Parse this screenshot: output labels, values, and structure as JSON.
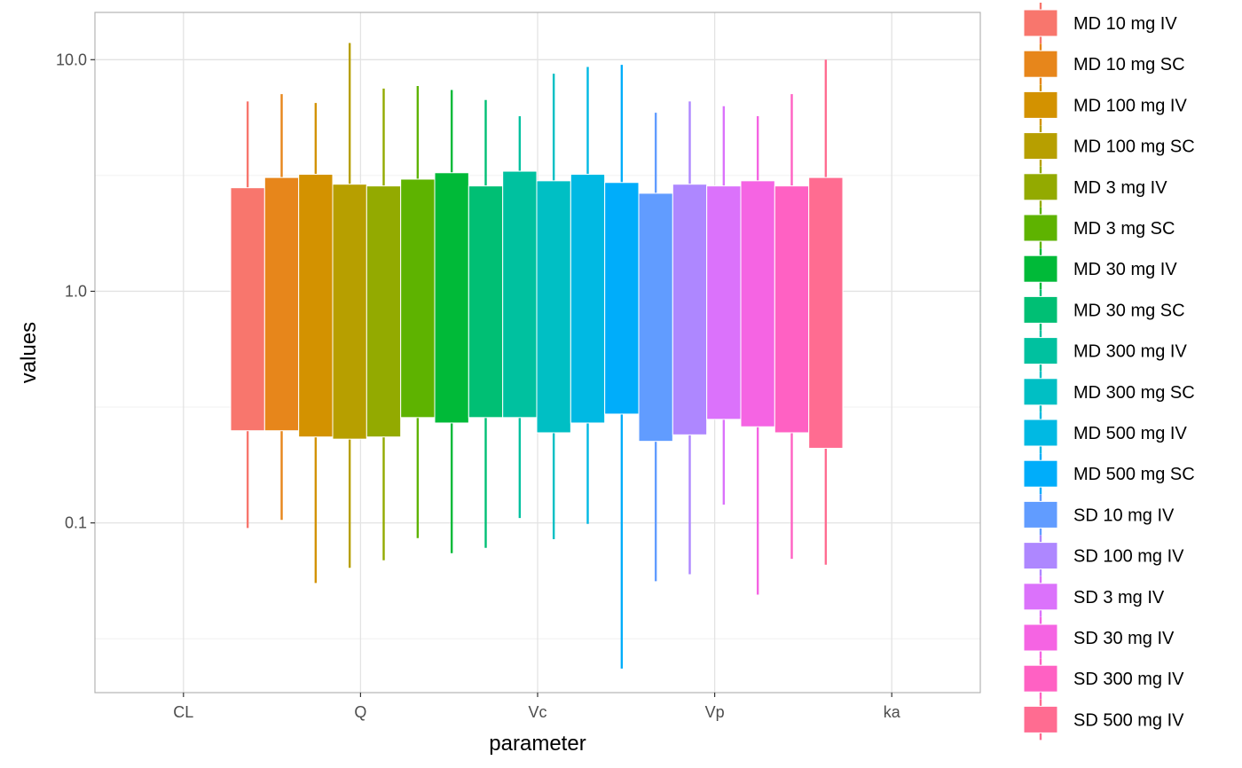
{
  "chart_data": {
    "type": "boxplot",
    "xlabel": "parameter",
    "ylabel": "values",
    "categories": [
      "CL",
      "Q",
      "Vc",
      "Vp",
      "ka"
    ],
    "y_scale": "log10",
    "ylim": [
      0.0185,
      16
    ],
    "y_ticks": [
      0.1,
      1.0,
      10.0
    ],
    "y_tick_labels": [
      "0.1",
      "1.0",
      "10.0"
    ],
    "grid": true,
    "legend_position": "right",
    "series": [
      {
        "name": "MD 10 mg IV",
        "color": "#F8766D",
        "low": 0.095,
        "q1": 0.25,
        "q3": 2.8,
        "high": 6.6
      },
      {
        "name": "MD 10 mg SC",
        "color": "#E7861B",
        "low": 0.103,
        "q1": 0.25,
        "q3": 3.1,
        "high": 7.1
      },
      {
        "name": "MD 100 mg IV",
        "color": "#D39200",
        "low": 0.055,
        "q1": 0.235,
        "q3": 3.2,
        "high": 6.5
      },
      {
        "name": "MD 100 mg SC",
        "color": "#B79F00",
        "low": 0.064,
        "q1": 0.23,
        "q3": 2.9,
        "high": 11.8
      },
      {
        "name": "MD 3 mg IV",
        "color": "#93AA00",
        "low": 0.069,
        "q1": 0.235,
        "q3": 2.85,
        "high": 7.5
      },
      {
        "name": "MD 3 mg SC",
        "color": "#5EB300",
        "low": 0.086,
        "q1": 0.285,
        "q3": 3.05,
        "high": 7.7
      },
      {
        "name": "MD 30 mg IV",
        "color": "#00BA38",
        "low": 0.074,
        "q1": 0.27,
        "q3": 3.25,
        "high": 7.4
      },
      {
        "name": "MD 30 mg SC",
        "color": "#00BF74",
        "low": 0.078,
        "q1": 0.285,
        "q3": 2.85,
        "high": 6.7
      },
      {
        "name": "MD 300 mg IV",
        "color": "#00C19F",
        "low": 0.105,
        "q1": 0.285,
        "q3": 3.3,
        "high": 5.7
      },
      {
        "name": "MD 300 mg SC",
        "color": "#00BFC4",
        "low": 0.085,
        "q1": 0.245,
        "q3": 3.0,
        "high": 8.7
      },
      {
        "name": "MD 500 mg IV",
        "color": "#00B9E3",
        "low": 0.099,
        "q1": 0.27,
        "q3": 3.2,
        "high": 9.3
      },
      {
        "name": "MD 500 mg SC",
        "color": "#00ADFA",
        "low": 0.0235,
        "q1": 0.295,
        "q3": 2.95,
        "high": 9.5
      },
      {
        "name": "SD 10 mg IV",
        "color": "#619CFF",
        "low": 0.056,
        "q1": 0.225,
        "q3": 2.65,
        "high": 5.9
      },
      {
        "name": "SD 100 mg IV",
        "color": "#AE87FF",
        "low": 0.06,
        "q1": 0.24,
        "q3": 2.9,
        "high": 6.6
      },
      {
        "name": "SD 3 mg IV",
        "color": "#DB72FB",
        "low": 0.12,
        "q1": 0.28,
        "q3": 2.85,
        "high": 6.3
      },
      {
        "name": "SD 30 mg IV",
        "color": "#F564E3",
        "low": 0.049,
        "q1": 0.26,
        "q3": 3.0,
        "high": 5.7
      },
      {
        "name": "SD 300 mg IV",
        "color": "#FF61C3",
        "low": 0.07,
        "q1": 0.245,
        "q3": 2.85,
        "high": 7.1
      },
      {
        "name": "SD 500 mg IV",
        "color": "#FF6C91",
        "low": 0.066,
        "q1": 0.21,
        "q3": 3.1,
        "high": 10.0
      }
    ]
  }
}
